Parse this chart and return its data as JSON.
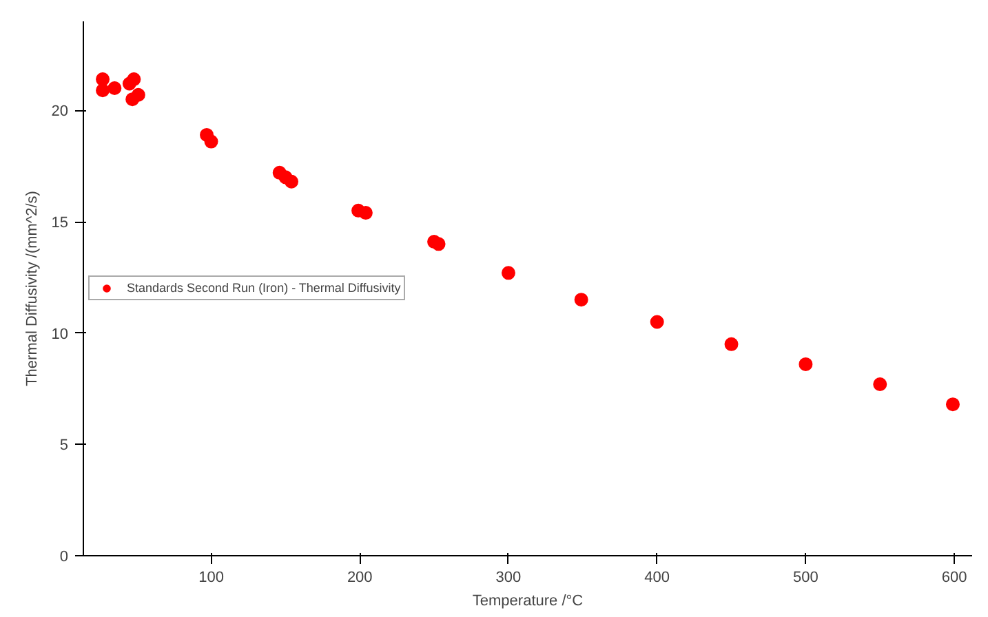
{
  "chart_data": {
    "type": "scatter",
    "xlabel": "Temperature /°C",
    "ylabel": "Thermal Diffusivity /(mm^2/s)",
    "xlim": [
      14,
      612
    ],
    "ylim": [
      0,
      24
    ],
    "xticks": [
      100,
      200,
      300,
      400,
      500,
      600
    ],
    "yticks": [
      0,
      5,
      10,
      15,
      20
    ],
    "grid": false,
    "legend": "left",
    "marker": "circle",
    "series": [
      {
        "name": "Standards Second Run (Iron) - Thermal Diffusivity",
        "color": "#ff0000",
        "x": [
          27,
          27,
          35,
          45,
          48,
          47,
          51,
          97,
          100,
          146,
          150,
          154,
          199,
          204,
          250,
          253,
          300,
          349,
          400,
          450,
          500,
          550,
          599
        ],
        "values": [
          21.4,
          20.9,
          21.0,
          21.2,
          21.4,
          20.5,
          20.7,
          18.9,
          18.6,
          17.2,
          17.0,
          16.8,
          15.5,
          15.4,
          14.1,
          14.0,
          12.7,
          11.5,
          10.5,
          9.5,
          8.6,
          7.7,
          6.8
        ]
      }
    ]
  }
}
